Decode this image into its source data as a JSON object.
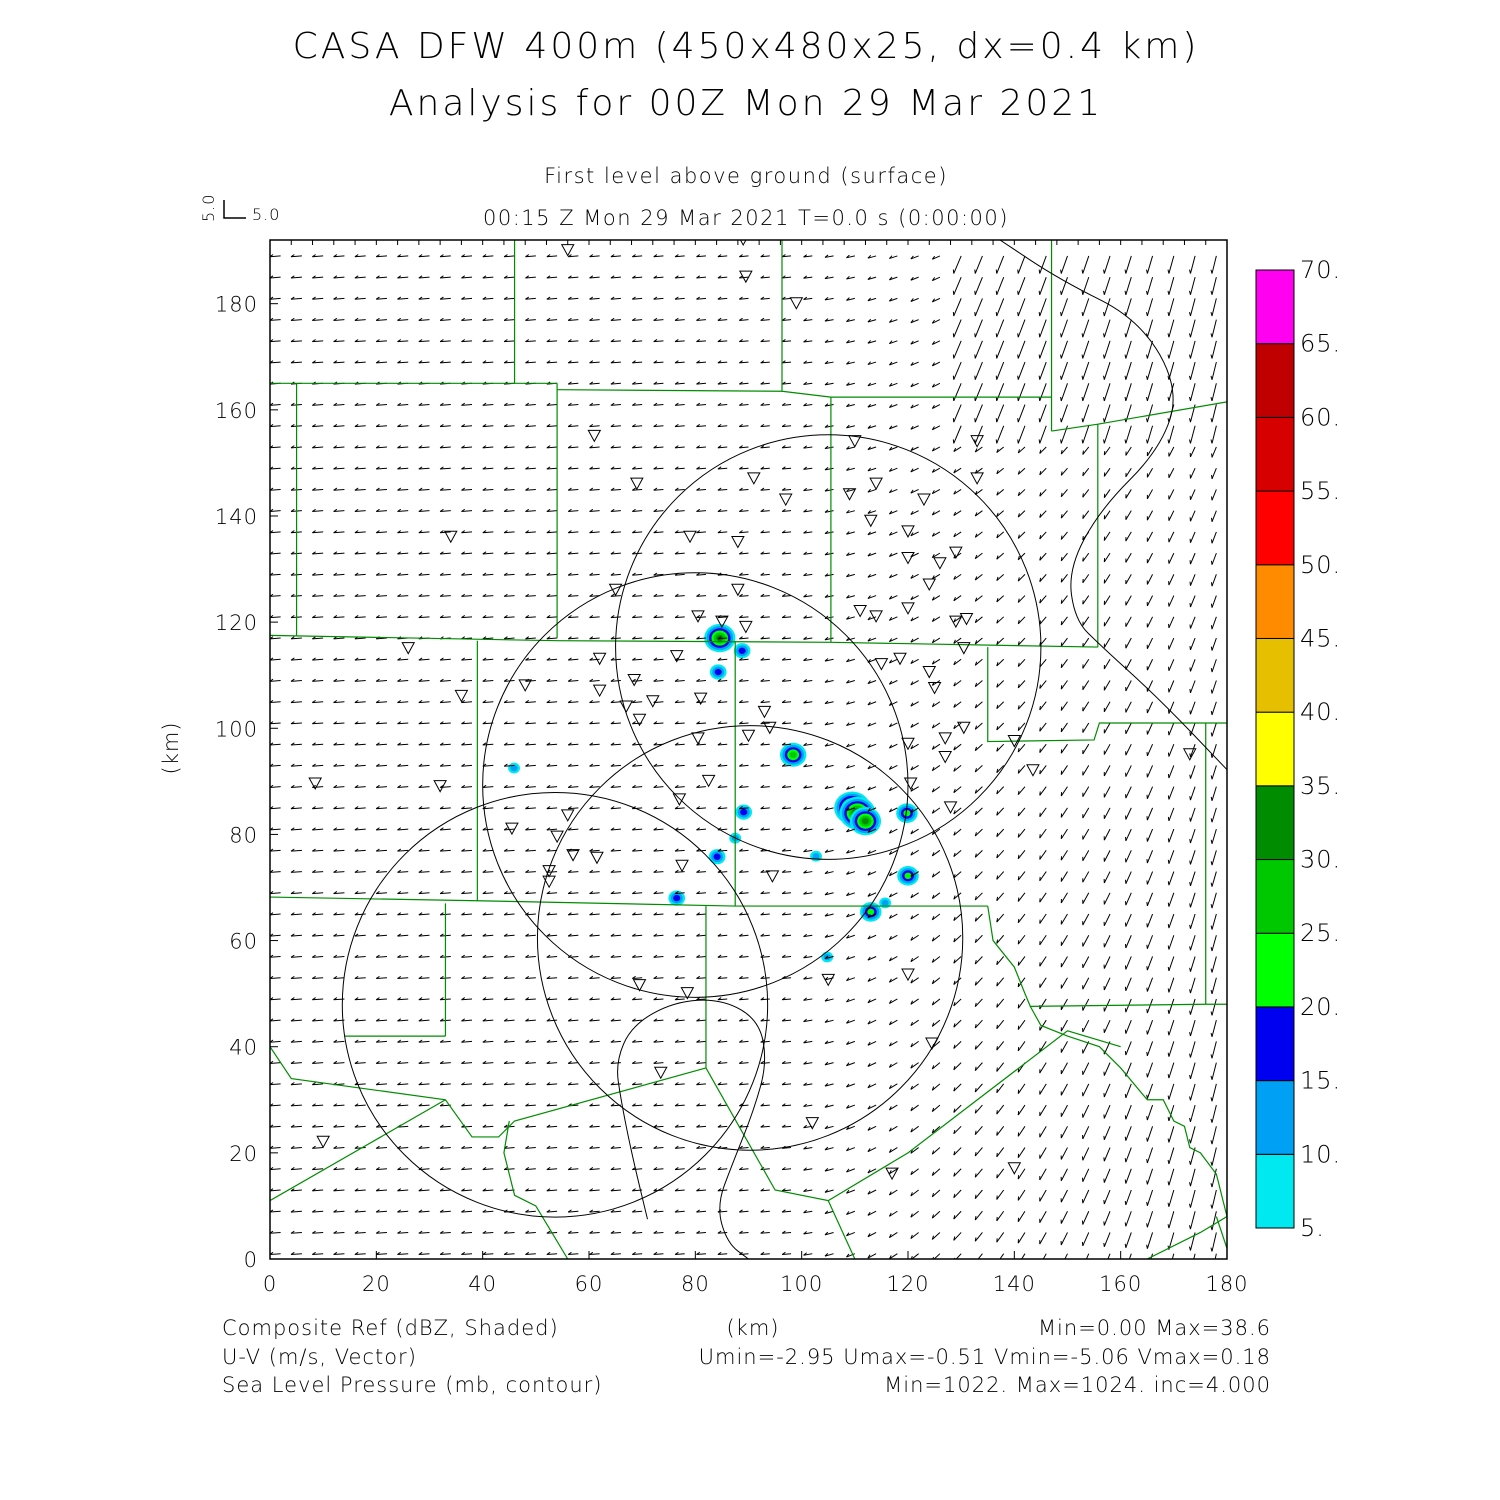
{
  "title_line1": "CASA DFW 400m (450x480x25, dx=0.4 km)",
  "title_line2": "Analysis for 00Z Mon 29 Mar 2021",
  "subtitle_level": "First level above ground (surface)",
  "subtitle_time": "00:15 Z Mon 29 Mar 2021    T=0.0 s (0:00:00)",
  "vector_ref": {
    "u_label": "5.0",
    "v_label": "5.0"
  },
  "footer": {
    "left1": "Composite Ref (dBZ, Shaded)",
    "left2": "U-V (m/s, Vector)",
    "left3": "Sea Level Pressure (mb, contour)",
    "center": "(km)",
    "right1": "Min=0.00 Max=38.6",
    "right2": "Umin=-2.95 Umax=-0.51 Vmin=-5.06 Vmax=0.18",
    "right3": "Min=1022. Max=1024. inc=4.000"
  },
  "chart_data": {
    "type": "heatmap",
    "xlabel": "(km)",
    "ylabel": "(km)",
    "xlim": [
      0,
      180
    ],
    "ylim": [
      0,
      192
    ],
    "xticks": [
      "0",
      "20",
      "40",
      "60",
      "80",
      "100",
      "120",
      "140",
      "160",
      "180"
    ],
    "yticks": [
      "0",
      "20",
      "40",
      "60",
      "80",
      "100",
      "120",
      "140",
      "160",
      "180"
    ],
    "colorbar": {
      "levels": [
        "5.",
        "10.",
        "15.",
        "20.",
        "25.",
        "30.",
        "35.",
        "40.",
        "45.",
        "50.",
        "55.",
        "60.",
        "65.",
        "70."
      ],
      "colors": [
        "#00e8f0",
        "#00a0f5",
        "#0000f0",
        "#00ff00",
        "#00c800",
        "#008c00",
        "#ffff00",
        "#e6c000",
        "#ff8c00",
        "#ff0000",
        "#d60000",
        "#c00000",
        "#ff00f0"
      ]
    },
    "reflectivity_cells_km_dbz": [
      [
        84.6,
        117,
        30
      ],
      [
        88.8,
        114.6,
        15
      ],
      [
        84.3,
        110.6,
        15
      ],
      [
        45.9,
        92.5,
        10
      ],
      [
        98.4,
        95,
        25
      ],
      [
        109.5,
        85,
        35
      ],
      [
        110.5,
        84,
        38.6
      ],
      [
        112,
        82.5,
        30
      ],
      [
        119.8,
        84,
        20
      ],
      [
        89.1,
        84.2,
        15
      ],
      [
        87.5,
        79.3,
        10
      ],
      [
        84.1,
        75.8,
        15
      ],
      [
        102.7,
        75.9,
        10
      ],
      [
        120,
        72.2,
        20
      ],
      [
        76.5,
        68,
        15
      ],
      [
        113,
        65.4,
        20
      ],
      [
        115.7,
        67.1,
        10
      ],
      [
        104.8,
        56.9,
        10
      ]
    ],
    "stations_km": [
      [
        56,
        190
      ],
      [
        89,
        192
      ],
      [
        89.5,
        185
      ],
      [
        99,
        180
      ],
      [
        61,
        155
      ],
      [
        69,
        146
      ],
      [
        34,
        136
      ],
      [
        79,
        136
      ],
      [
        88,
        135
      ],
      [
        91,
        147
      ],
      [
        97,
        143
      ],
      [
        110,
        154
      ],
      [
        133,
        154
      ],
      [
        133,
        147
      ],
      [
        109,
        144
      ],
      [
        114,
        146
      ],
      [
        113,
        139
      ],
      [
        123,
        143
      ],
      [
        120,
        137
      ],
      [
        120,
        132
      ],
      [
        126,
        131
      ],
      [
        129,
        133
      ],
      [
        124,
        127
      ],
      [
        65,
        126
      ],
      [
        88,
        126
      ],
      [
        80.5,
        121
      ],
      [
        85,
        120
      ],
      [
        89.5,
        119
      ],
      [
        111,
        122
      ],
      [
        114,
        121
      ],
      [
        120,
        122.5
      ],
      [
        129,
        120
      ],
      [
        131,
        120.5
      ],
      [
        130.5,
        115
      ],
      [
        26,
        115
      ],
      [
        36,
        106
      ],
      [
        48,
        108
      ],
      [
        62,
        113
      ],
      [
        62,
        107
      ],
      [
        68.5,
        109
      ],
      [
        67,
        104
      ],
      [
        69.5,
        101.5
      ],
      [
        72,
        105
      ],
      [
        76.5,
        113.5
      ],
      [
        81,
        105.5
      ],
      [
        93,
        103
      ],
      [
        94,
        100
      ],
      [
        90,
        98.5
      ],
      [
        80.5,
        98
      ],
      [
        115,
        112
      ],
      [
        118.5,
        113
      ],
      [
        124,
        110.5
      ],
      [
        125,
        107.5
      ],
      [
        120,
        97
      ],
      [
        127,
        98
      ],
      [
        127,
        94.5
      ],
      [
        130.5,
        100
      ],
      [
        140,
        97.5
      ],
      [
        143.5,
        92
      ],
      [
        173,
        95
      ],
      [
        8.5,
        89.5
      ],
      [
        32,
        89
      ],
      [
        82.5,
        90
      ],
      [
        77,
        86.5
      ],
      [
        120.5,
        89.5
      ],
      [
        128,
        85
      ],
      [
        45.5,
        81
      ],
      [
        54,
        79.5
      ],
      [
        56,
        83.5
      ],
      [
        57,
        76
      ],
      [
        61.5,
        75.5
      ],
      [
        52.5,
        73
      ],
      [
        52.5,
        71
      ],
      [
        77.5,
        74
      ],
      [
        94.5,
        72
      ],
      [
        69.5,
        51.5
      ],
      [
        78.5,
        50
      ],
      [
        105,
        52.5
      ],
      [
        120,
        53.5
      ],
      [
        124.5,
        40.5
      ],
      [
        73.5,
        35
      ],
      [
        102,
        25.5
      ],
      [
        10,
        22
      ],
      [
        117,
        16
      ],
      [
        140,
        17
      ]
    ],
    "range_rings_km": [
      {
        "cx": 105,
        "cy": 115.3,
        "r": 40
      },
      {
        "cx": 80,
        "cy": 89.3,
        "r": 40
      },
      {
        "cx": 90.3,
        "cy": 60.5,
        "r": 40
      },
      {
        "cx": 53.6,
        "cy": 47.9,
        "r": 40
      }
    ],
    "slp_contours_km": [
      [
        [
          137.3,
          192
        ],
        [
          148.6,
          184.5
        ],
        [
          163.6,
          177
        ],
        [
          171.1,
          163.8
        ],
        [
          167.4,
          152.5
        ],
        [
          156.1,
          141.2
        ],
        [
          150.1,
          129.9
        ],
        [
          151.4,
          120.4
        ],
        [
          156.1,
          115.7
        ],
        [
          167.4,
          105.4
        ],
        [
          180,
          92.2
        ]
      ],
      [
        [
          71,
          7.5
        ],
        [
          68,
          20
        ],
        [
          66,
          30
        ],
        [
          65,
          37
        ],
        [
          68,
          44
        ],
        [
          76,
          48.5
        ],
        [
          85,
          49
        ],
        [
          92,
          45
        ],
        [
          93.5,
          37
        ],
        [
          91,
          28
        ],
        [
          87,
          18
        ],
        [
          84,
          10
        ],
        [
          86,
          3
        ],
        [
          90,
          0
        ]
      ]
    ],
    "county_lines_km": [
      [
        [
          0,
          165
        ],
        [
          54,
          165
        ]
      ],
      [
        [
          46,
          192
        ],
        [
          46,
          165
        ]
      ],
      [
        [
          54,
          165
        ],
        [
          54,
          117
        ]
      ],
      [
        [
          5,
          165
        ],
        [
          5,
          117.5
        ]
      ],
      [
        [
          54,
          163.8
        ],
        [
          96.3,
          163.5
        ],
        [
          105.5,
          162.4
        ]
      ],
      [
        [
          96.3,
          192
        ],
        [
          96.3,
          163.5
        ]
      ],
      [
        [
          105.5,
          162.4
        ],
        [
          105.5,
          116.2
        ]
      ],
      [
        [
          105.5,
          162.4
        ],
        [
          147,
          162.4
        ]
      ],
      [
        [
          147,
          192
        ],
        [
          147,
          156
        ]
      ],
      [
        [
          147,
          156
        ],
        [
          155.7,
          157.3
        ],
        [
          180,
          161.5
        ]
      ],
      [
        [
          155.7,
          157.3
        ],
        [
          155.7,
          115.3
        ]
      ],
      [
        [
          0,
          117.5
        ],
        [
          54,
          116.5
        ],
        [
          105.5,
          116.2
        ],
        [
          155.7,
          115.3
        ]
      ],
      [
        [
          39,
          116.5
        ],
        [
          39,
          67.5
        ]
      ],
      [
        [
          87.5,
          116.3
        ],
        [
          87.5,
          66.5
        ]
      ],
      [
        [
          135,
          115.3
        ],
        [
          135,
          97.5
        ],
        [
          155,
          97.8
        ],
        [
          156,
          101
        ],
        [
          180,
          101
        ]
      ],
      [
        [
          176,
          101
        ],
        [
          176,
          48
        ]
      ],
      [
        [
          0,
          68.2
        ],
        [
          39,
          67.5
        ],
        [
          87.5,
          66.5
        ],
        [
          135,
          66.5
        ]
      ],
      [
        [
          135,
          66.5
        ],
        [
          136,
          60
        ],
        [
          140,
          55
        ],
        [
          142,
          50
        ],
        [
          143,
          47.6
        ],
        [
          176,
          48
        ],
        [
          180,
          48
        ]
      ],
      [
        [
          143,
          47.6
        ],
        [
          145,
          44
        ],
        [
          150,
          42
        ],
        [
          156,
          40
        ],
        [
          160,
          36
        ],
        [
          165,
          30
        ],
        [
          168,
          30
        ],
        [
          170,
          26
        ],
        [
          172,
          25
        ],
        [
          173,
          21
        ],
        [
          175,
          20
        ],
        [
          178,
          16
        ],
        [
          180,
          8
        ]
      ],
      [
        [
          33,
          67
        ],
        [
          33,
          42
        ]
      ],
      [
        [
          14,
          42
        ],
        [
          33,
          42
        ]
      ],
      [
        [
          82,
          66.5
        ],
        [
          82,
          36
        ]
      ],
      [
        [
          0,
          40
        ],
        [
          4,
          34
        ],
        [
          33,
          30
        ],
        [
          38,
          23
        ],
        [
          43,
          23
        ],
        [
          46,
          26
        ],
        [
          82,
          36
        ]
      ],
      [
        [
          0,
          11
        ],
        [
          33,
          30
        ]
      ],
      [
        [
          45,
          26
        ],
        [
          44,
          20
        ],
        [
          46,
          12
        ],
        [
          50,
          10
        ],
        [
          53,
          5
        ],
        [
          56,
          0
        ]
      ],
      [
        [
          82,
          36
        ],
        [
          95,
          13
        ],
        [
          105,
          11
        ],
        [
          120,
          20
        ],
        [
          150,
          43
        ],
        [
          160,
          40
        ]
      ],
      [
        [
          105,
          11
        ],
        [
          110,
          0
        ]
      ],
      [
        [
          165,
          0
        ],
        [
          175,
          5
        ],
        [
          180,
          8
        ]
      ],
      [
        [
          178,
          8
        ],
        [
          180,
          2
        ]
      ]
    ]
  }
}
